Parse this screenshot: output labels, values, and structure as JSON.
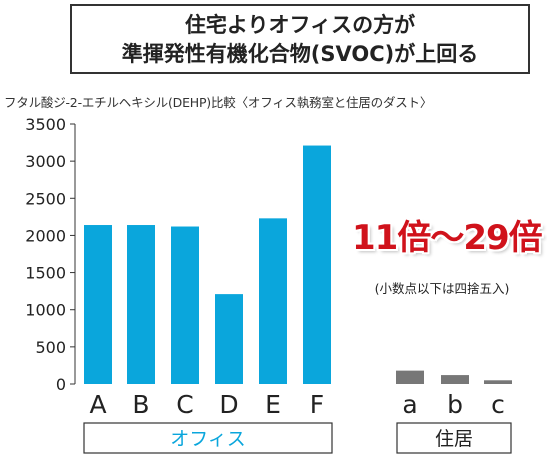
{
  "title": {
    "line1": "住宅よりオフィスの方が",
    "line2": "準揮発性有機化合物(SVOC)が上回る"
  },
  "subtitle": "フタル酸ジ-2-エチルヘキシル(DEHP)比較〈オフィス執務室と住居のダスト〉",
  "callout": {
    "main": "11倍〜29倍",
    "note": "(小数点以下は四捨五入)"
  },
  "colors": {
    "office_bar": "#0aa6dc",
    "home_bar": "#777777",
    "office_label": "#0aa6dc",
    "callout": "#d0121b"
  },
  "chart_data": {
    "type": "bar",
    "categories": [
      "A",
      "B",
      "C",
      "D",
      "E",
      "F",
      "a",
      "b",
      "c"
    ],
    "values": [
      2140,
      2140,
      2120,
      1210,
      2230,
      3210,
      180,
      120,
      50
    ],
    "groups": [
      {
        "label": "オフィス",
        "categories": [
          "A",
          "B",
          "C",
          "D",
          "E",
          "F"
        ]
      },
      {
        "label": "住居",
        "categories": [
          "a",
          "b",
          "c"
        ]
      }
    ],
    "yticks": [
      "0",
      "500",
      "1000",
      "1500",
      "2000",
      "2500",
      "3000",
      "3500"
    ],
    "ylim": [
      0,
      3500
    ],
    "grid": false
  }
}
